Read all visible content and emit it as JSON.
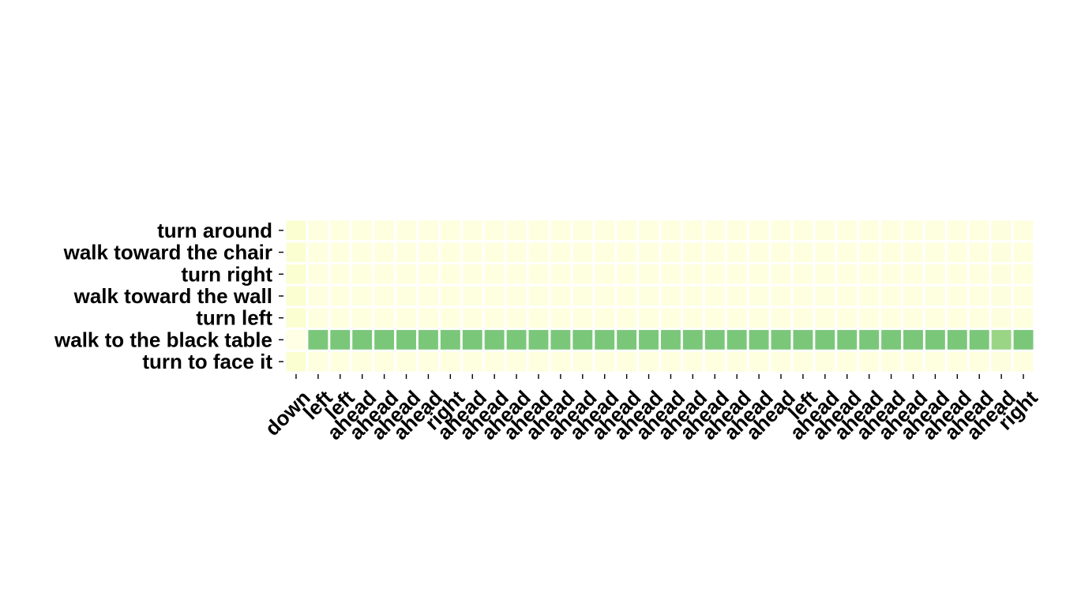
{
  "chart_data": {
    "type": "heatmap",
    "title": "",
    "xlabel": "",
    "ylabel": "",
    "rows": [
      "turn around",
      "walk toward the chair",
      "turn right",
      "walk toward the wall",
      "turn left",
      "walk to the black table",
      "turn to face it"
    ],
    "columns": [
      "down",
      "left",
      "left",
      "ahead",
      "ahead",
      "ahead",
      "ahead",
      "right",
      "ahead",
      "ahead",
      "ahead",
      "ahead",
      "ahead",
      "ahead",
      "ahead",
      "ahead",
      "ahead",
      "ahead",
      "ahead",
      "ahead",
      "ahead",
      "ahead",
      "ahead",
      "left",
      "ahead",
      "ahead",
      "ahead",
      "ahead",
      "ahead",
      "ahead",
      "ahead",
      "ahead",
      "ahead",
      "right"
    ],
    "values": [
      [
        0.1,
        0.03,
        0.03,
        0.03,
        0.03,
        0.03,
        0.03,
        0.03,
        0.03,
        0.03,
        0.03,
        0.03,
        0.03,
        0.03,
        0.03,
        0.03,
        0.03,
        0.03,
        0.03,
        0.03,
        0.03,
        0.03,
        0.03,
        0.03,
        0.03,
        0.03,
        0.03,
        0.03,
        0.03,
        0.03,
        0.03,
        0.03,
        0.04,
        0.03
      ],
      [
        0.1,
        0.03,
        0.03,
        0.03,
        0.03,
        0.03,
        0.03,
        0.03,
        0.03,
        0.03,
        0.03,
        0.03,
        0.03,
        0.03,
        0.03,
        0.03,
        0.03,
        0.03,
        0.03,
        0.03,
        0.03,
        0.03,
        0.03,
        0.03,
        0.03,
        0.03,
        0.03,
        0.03,
        0.03,
        0.03,
        0.03,
        0.03,
        0.04,
        0.03
      ],
      [
        0.1,
        0.03,
        0.03,
        0.03,
        0.03,
        0.03,
        0.03,
        0.03,
        0.03,
        0.03,
        0.03,
        0.03,
        0.03,
        0.03,
        0.03,
        0.03,
        0.03,
        0.03,
        0.03,
        0.03,
        0.03,
        0.03,
        0.03,
        0.03,
        0.03,
        0.03,
        0.03,
        0.03,
        0.03,
        0.03,
        0.03,
        0.03,
        0.04,
        0.03
      ],
      [
        0.1,
        0.03,
        0.03,
        0.03,
        0.03,
        0.03,
        0.03,
        0.03,
        0.03,
        0.03,
        0.03,
        0.03,
        0.03,
        0.03,
        0.03,
        0.03,
        0.03,
        0.03,
        0.03,
        0.03,
        0.03,
        0.03,
        0.03,
        0.03,
        0.03,
        0.03,
        0.03,
        0.03,
        0.03,
        0.03,
        0.03,
        0.03,
        0.04,
        0.03
      ],
      [
        0.1,
        0.03,
        0.03,
        0.03,
        0.03,
        0.03,
        0.03,
        0.03,
        0.03,
        0.03,
        0.03,
        0.03,
        0.03,
        0.03,
        0.03,
        0.03,
        0.03,
        0.03,
        0.03,
        0.03,
        0.03,
        0.03,
        0.03,
        0.03,
        0.03,
        0.03,
        0.03,
        0.03,
        0.03,
        0.03,
        0.03,
        0.03,
        0.04,
        0.03
      ],
      [
        0.0,
        0.82,
        0.82,
        0.82,
        0.82,
        0.82,
        0.82,
        0.82,
        0.82,
        0.82,
        0.82,
        0.82,
        0.82,
        0.82,
        0.82,
        0.82,
        0.82,
        0.82,
        0.82,
        0.82,
        0.82,
        0.82,
        0.82,
        0.82,
        0.82,
        0.82,
        0.82,
        0.82,
        0.82,
        0.82,
        0.82,
        0.82,
        0.7,
        0.82
      ],
      [
        0.1,
        0.03,
        0.03,
        0.03,
        0.03,
        0.03,
        0.03,
        0.03,
        0.03,
        0.03,
        0.03,
        0.03,
        0.03,
        0.03,
        0.03,
        0.03,
        0.03,
        0.03,
        0.03,
        0.03,
        0.03,
        0.03,
        0.03,
        0.03,
        0.03,
        0.03,
        0.03,
        0.03,
        0.03,
        0.03,
        0.03,
        0.03,
        0.04,
        0.03
      ]
    ],
    "vrange": [
      0,
      1
    ],
    "colormap": "YlGn",
    "colorbar": false,
    "grid": false
  }
}
